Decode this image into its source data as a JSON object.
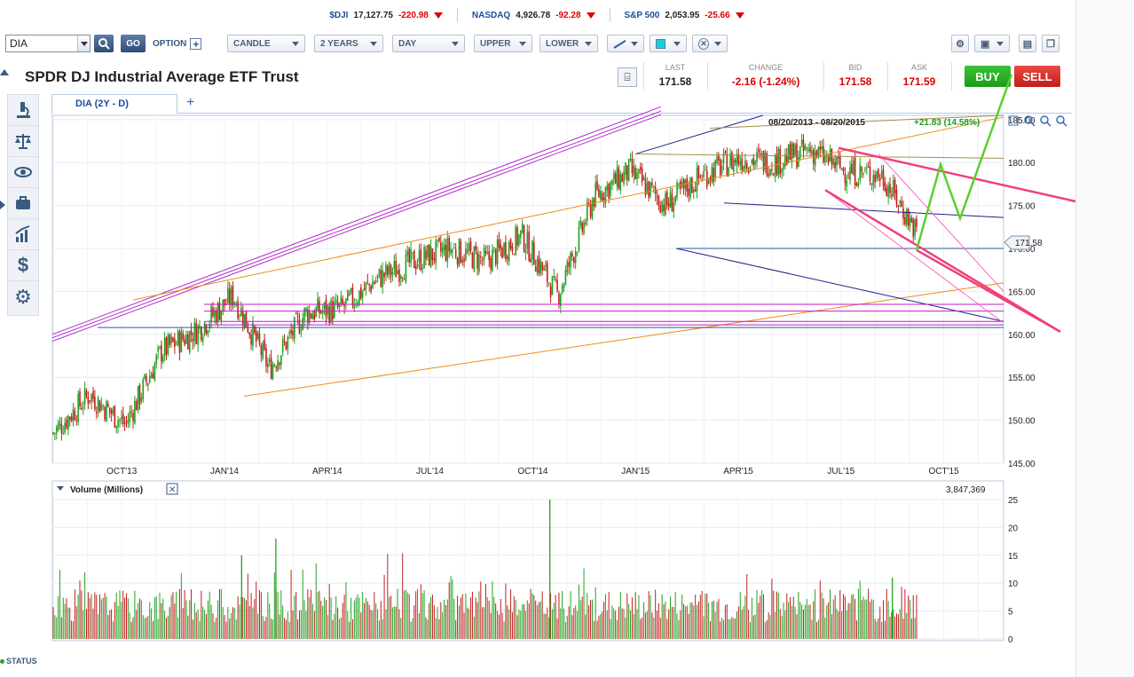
{
  "ticker": [
    {
      "symbol": "$DJI",
      "value": "17,127.75",
      "change": "-220.98"
    },
    {
      "symbol": "NASDAQ",
      "value": "4,926.78",
      "change": "-92.28"
    },
    {
      "symbol": "S&P 500",
      "value": "2,053.95",
      "change": "-25.66"
    }
  ],
  "toolbar": {
    "symbol_value": "DIA",
    "go_label": "GO",
    "option_label": "OPTION",
    "chart_type": "CANDLE",
    "range": "2 YEARS",
    "interval": "DAY",
    "upper": "UPPER",
    "lower": "LOWER"
  },
  "header": {
    "title": "SPDR DJ Industrial Average ETF Trust",
    "last_label": "LAST",
    "last": "171.58",
    "change_label": "CHANGE",
    "change": "-2.16 (-1.24%)",
    "bid_label": "BID",
    "bid": "171.58",
    "ask_label": "ASK",
    "ask": "171.59",
    "buy_label": "BUY",
    "sell_label": "SELL"
  },
  "tab": {
    "label": "DIA (2Y - D)"
  },
  "chart_info": {
    "range_text": "08/20/2013 - 08/20/2015",
    "perf_text": "+21.83 (14.58%)",
    "last_tag": "171.58"
  },
  "volume_panel": {
    "label": "Volume (Millions)",
    "last_volume": "3,847,369"
  },
  "status_label": "STATUS",
  "colors": {
    "up": "#22a11d",
    "down": "#c21e1e",
    "accent": "#1a4d9c",
    "trend_pink": "#f0407a",
    "trend_green": "#5ccf2e"
  },
  "chart_data": {
    "type": "candlestick",
    "title": "DIA (2Y - D)",
    "x_tick_labels": [
      "OCT'13",
      "JAN'14",
      "APR'14",
      "JUL'14",
      "OCT'14",
      "JAN'15",
      "APR'15",
      "JUL'15",
      "OCT'15"
    ],
    "y_tick_labels": [
      "185.00",
      "180.00",
      "175.00",
      "170.00",
      "165.00",
      "160.00",
      "155.00",
      "150.00",
      "145.00"
    ],
    "ylim": [
      145,
      185.5
    ],
    "price_series": {
      "name": "DIA daily close (approx.)",
      "dates": [
        "2013-08",
        "2013-09",
        "2013-10",
        "2013-11",
        "2013-12",
        "2014-01",
        "2014-02",
        "2014-03",
        "2014-04",
        "2014-05",
        "2014-06",
        "2014-07",
        "2014-08",
        "2014-09",
        "2014-10",
        "2014-11",
        "2014-12",
        "2015-01",
        "2015-02",
        "2015-03",
        "2015-04",
        "2015-05",
        "2015-06",
        "2015-07",
        "2015-08"
      ],
      "close": [
        148.5,
        153.0,
        149.5,
        158.0,
        160.5,
        164.5,
        156.0,
        162.5,
        163.0,
        166.5,
        168.5,
        170.0,
        168.5,
        171.5,
        164.5,
        176.0,
        179.0,
        175.0,
        178.5,
        180.5,
        180.0,
        181.5,
        179.0,
        178.5,
        171.6
      ]
    },
    "volume_series": {
      "name": "Volume (Millions)",
      "ylim": [
        0,
        25
      ],
      "y_tick_labels": [
        "25",
        "20",
        "15",
        "10",
        "5",
        "0"
      ],
      "notable_spikes": [
        {
          "date": "2014-10",
          "value": 25
        },
        {
          "date": "2014-02",
          "value": 18
        },
        {
          "date": "2014-01",
          "value": 15
        },
        {
          "date": "2015-08",
          "value": 11
        }
      ]
    },
    "grid": true
  }
}
